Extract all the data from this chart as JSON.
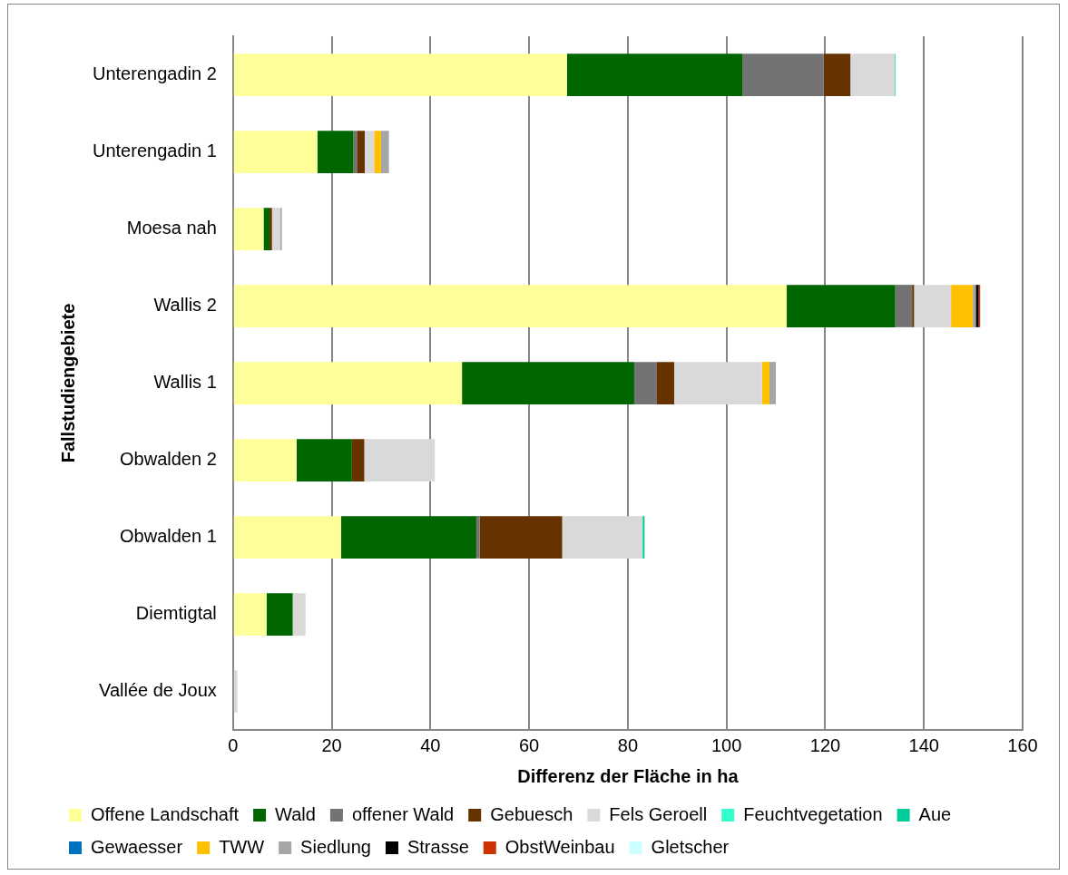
{
  "chart_data": {
    "type": "bar",
    "orientation": "horizontal",
    "stacked": true,
    "xlabel": "Differenz der Fläche in ha",
    "ylabel": "Fallstudiengebiete",
    "categories": [
      "Unterengadin 2",
      "Unterengadin 1",
      "Moesa nah",
      "Wallis 2",
      "Wallis 1",
      "Obwalden 2",
      "Obwalden 1",
      "Diemtigtal",
      "Vallée de Joux"
    ],
    "xlim": [
      0,
      160
    ],
    "xticks": [
      0,
      20,
      40,
      60,
      80,
      100,
      120,
      140,
      160
    ],
    "grid": "x",
    "legend": "bottom",
    "series": [
      {
        "name": "Offene Landschaft",
        "color": "#ffff99",
        "values": [
          67.7,
          17.1,
          6.2,
          112.2,
          46.4,
          12.9,
          21.9,
          6.8,
          null
        ]
      },
      {
        "name": "Wald",
        "color": "#006600",
        "values": [
          35.5,
          7.3,
          1.2,
          22.0,
          34.9,
          11.2,
          27.4,
          5.3,
          null
        ]
      },
      {
        "name": "offener Wald",
        "color": "#737373",
        "values": [
          16.5,
          0.7,
          null,
          3.4,
          4.6,
          null,
          0.7,
          null,
          null
        ]
      },
      {
        "name": "Gebuesch",
        "color": "#663300",
        "values": [
          5.4,
          1.6,
          0.5,
          0.4,
          3.5,
          2.5,
          16.7,
          null,
          null
        ]
      },
      {
        "name": "Fels Geroell",
        "color": "#d9d9d9",
        "values": [
          8.9,
          1.9,
          1.7,
          7.5,
          17.8,
          14.3,
          16.3,
          2.6,
          0.9
        ]
      },
      {
        "name": "Feuchtvegetation",
        "color": "#33ffcc",
        "values": [
          null,
          null,
          null,
          null,
          null,
          null,
          null,
          null,
          null
        ]
      },
      {
        "name": "Aue",
        "color": "#00cc99",
        "values": [
          0.2,
          null,
          null,
          null,
          null,
          null,
          0.4,
          null,
          null
        ]
      },
      {
        "name": "Gewaesser",
        "color": "#0070c0",
        "values": [
          null,
          null,
          null,
          null,
          null,
          null,
          null,
          null,
          null
        ]
      },
      {
        "name": "TWW",
        "color": "#ffc000",
        "values": [
          null,
          1.4,
          null,
          4.4,
          1.5,
          null,
          null,
          null,
          null
        ]
      },
      {
        "name": "Siedlung",
        "color": "#a6a6a6",
        "values": [
          null,
          1.6,
          0.3,
          0.6,
          1.3,
          null,
          null,
          null,
          null
        ]
      },
      {
        "name": "Strasse",
        "color": "#000000",
        "values": [
          null,
          null,
          null,
          0.6,
          null,
          null,
          null,
          null,
          null
        ]
      },
      {
        "name": "ObstWeinbau",
        "color": "#cc3300",
        "values": [
          null,
          null,
          null,
          0.3,
          null,
          null,
          null,
          null,
          null
        ]
      },
      {
        "name": "Gletscher",
        "color": "#ccffff",
        "values": [
          null,
          null,
          null,
          null,
          null,
          null,
          null,
          null,
          null
        ]
      }
    ]
  }
}
